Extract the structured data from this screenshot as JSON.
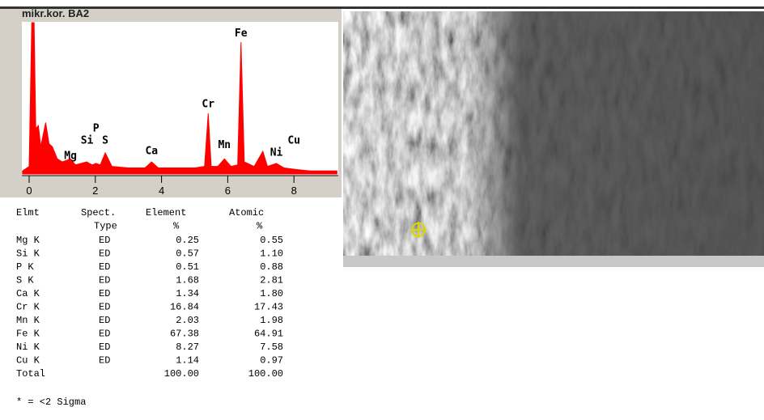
{
  "window_title": "mikr.kor. BA2",
  "chart_data": {
    "type": "area",
    "color": "#ff0000",
    "x": [
      -0.2,
      0.0,
      0.08,
      0.15,
      0.2,
      0.28,
      0.35,
      0.5,
      0.6,
      0.7,
      0.85,
      1.0,
      1.25,
      1.4,
      1.74,
      1.9,
      2.02,
      2.15,
      2.3,
      2.5,
      3.0,
      3.5,
      3.7,
      3.9,
      4.5,
      5.0,
      5.3,
      5.41,
      5.5,
      5.7,
      5.9,
      6.1,
      6.3,
      6.4,
      6.5,
      6.8,
      7.06,
      7.2,
      7.47,
      7.7,
      8.05,
      8.5,
      9.3
    ],
    "values": [
      2,
      5,
      100,
      100,
      30,
      32,
      18,
      34,
      20,
      18,
      10,
      8,
      10,
      6,
      8,
      6,
      7,
      6,
      14,
      5,
      4,
      4,
      8,
      4,
      4,
      4,
      5,
      40,
      5,
      5,
      10,
      5,
      6,
      87,
      8,
      5,
      15,
      5,
      7,
      4,
      3,
      2,
      2
    ],
    "xlim": [
      -0.22,
      9.34
    ],
    "ylim": [
      0,
      100
    ],
    "xticks": [
      0,
      2,
      4,
      6,
      8
    ],
    "annotations": [
      {
        "text": "Mg",
        "x": 1.25,
        "y": 10
      },
      {
        "text": "Si",
        "x": 1.75,
        "y": 20
      },
      {
        "text": "P",
        "x": 2.02,
        "y": 28
      },
      {
        "text": "S",
        "x": 2.3,
        "y": 20
      },
      {
        "text": "Ca",
        "x": 3.7,
        "y": 13
      },
      {
        "text": "Cr",
        "x": 5.41,
        "y": 44
      },
      {
        "text": "Mn",
        "x": 5.9,
        "y": 17
      },
      {
        "text": "Fe",
        "x": 6.4,
        "y": 91
      },
      {
        "text": "Ni",
        "x": 7.47,
        "y": 12
      },
      {
        "text": "Cu",
        "x": 8.0,
        "y": 20
      }
    ]
  },
  "table": {
    "header": [
      [
        "Elmt",
        "Spect.",
        "Element",
        "Atomic"
      ],
      [
        null,
        "Type",
        "%",
        "%"
      ]
    ],
    "rows": [
      [
        "Mg K",
        "ED",
        "0.25",
        "0.55"
      ],
      [
        "Si K",
        "ED",
        "0.57",
        "1.10"
      ],
      [
        "P  K",
        "ED",
        "0.51",
        "0.88"
      ],
      [
        "S  K",
        "ED",
        "1.68",
        "2.81"
      ],
      [
        "Ca K",
        "ED",
        "1.34",
        "1.80"
      ],
      [
        "Cr K",
        "ED",
        "16.84",
        "17.43"
      ],
      [
        "Mn K",
        "ED",
        "2.03",
        "1.98"
      ],
      [
        "Fe K",
        "ED",
        "67.38",
        "64.91"
      ],
      [
        "Ni K",
        "ED",
        "8.27",
        "7.58"
      ],
      [
        "Cu K",
        "ED",
        "1.14",
        "0.97"
      ],
      [
        "Total",
        null,
        "100.00",
        "100.00"
      ]
    ]
  },
  "footnote": "* = <2 Sigma"
}
